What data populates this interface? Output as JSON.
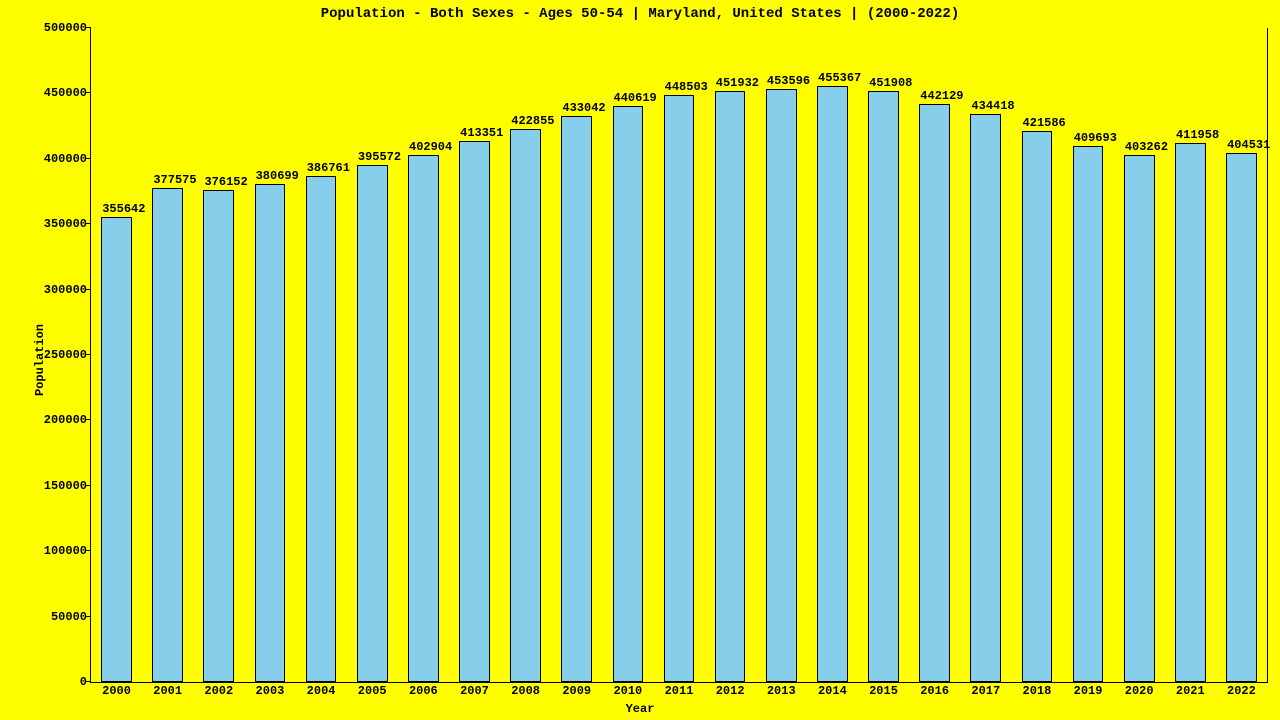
{
  "chart": {
    "type": "bar",
    "title": "Population - Both Sexes - Ages 50-54 | Maryland, United States |  (2000-2022)",
    "xlabel": "Year",
    "ylabel": "Population",
    "title_fontsize": 14,
    "label_fontsize": 12,
    "tick_fontsize": 12,
    "font_family": "Courier New, monospace",
    "font_weight": "bold",
    "background_color": "#ffff00",
    "bar_color": "#87ceeb",
    "bar_border_color": "#000000",
    "axis_color": "#000000",
    "text_color": "#000000",
    "ylim": [
      0,
      500000
    ],
    "ytick_step": 50000,
    "yticks": [
      0,
      50000,
      100000,
      150000,
      200000,
      250000,
      300000,
      350000,
      400000,
      450000,
      500000
    ],
    "bar_width_ratio": 0.6,
    "categories": [
      "2000",
      "2001",
      "2002",
      "2003",
      "2004",
      "2005",
      "2006",
      "2007",
      "2008",
      "2009",
      "2010",
      "2011",
      "2012",
      "2013",
      "2014",
      "2015",
      "2016",
      "2017",
      "2018",
      "2019",
      "2020",
      "2021",
      "2022"
    ],
    "values": [
      355642,
      377575,
      376152,
      380699,
      386761,
      395572,
      402904,
      413351,
      422855,
      433042,
      440619,
      448503,
      451932,
      453596,
      455367,
      451908,
      442129,
      434418,
      421586,
      409693,
      403262,
      411958,
      404531
    ]
  }
}
